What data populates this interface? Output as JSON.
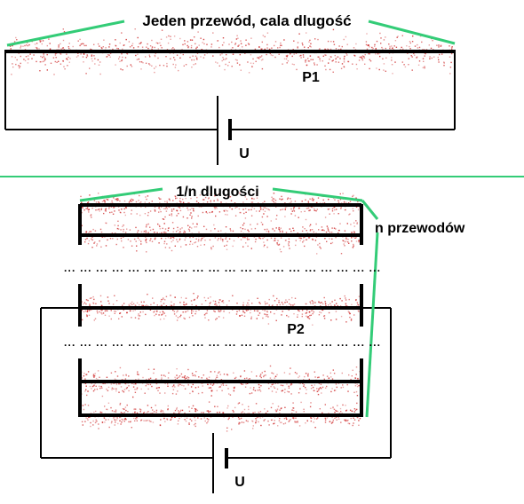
{
  "top": {
    "title": "Jeden przewód, cala dlugość",
    "resistor_label": "P1",
    "voltage_label": "U"
  },
  "bottom": {
    "length_label": "1/n dlugości",
    "count_label": "n przewodów",
    "resistor_label": "P2",
    "voltage_label": "U",
    "dots_row": "... ... ... ... ... ... ... ... ... ... ... ... ... ... ... ... ... ... ... ..."
  },
  "colors": {
    "wire": "#000000",
    "callout": "#33cc77",
    "noise": "#cc2222",
    "divider": "#33cc77"
  }
}
